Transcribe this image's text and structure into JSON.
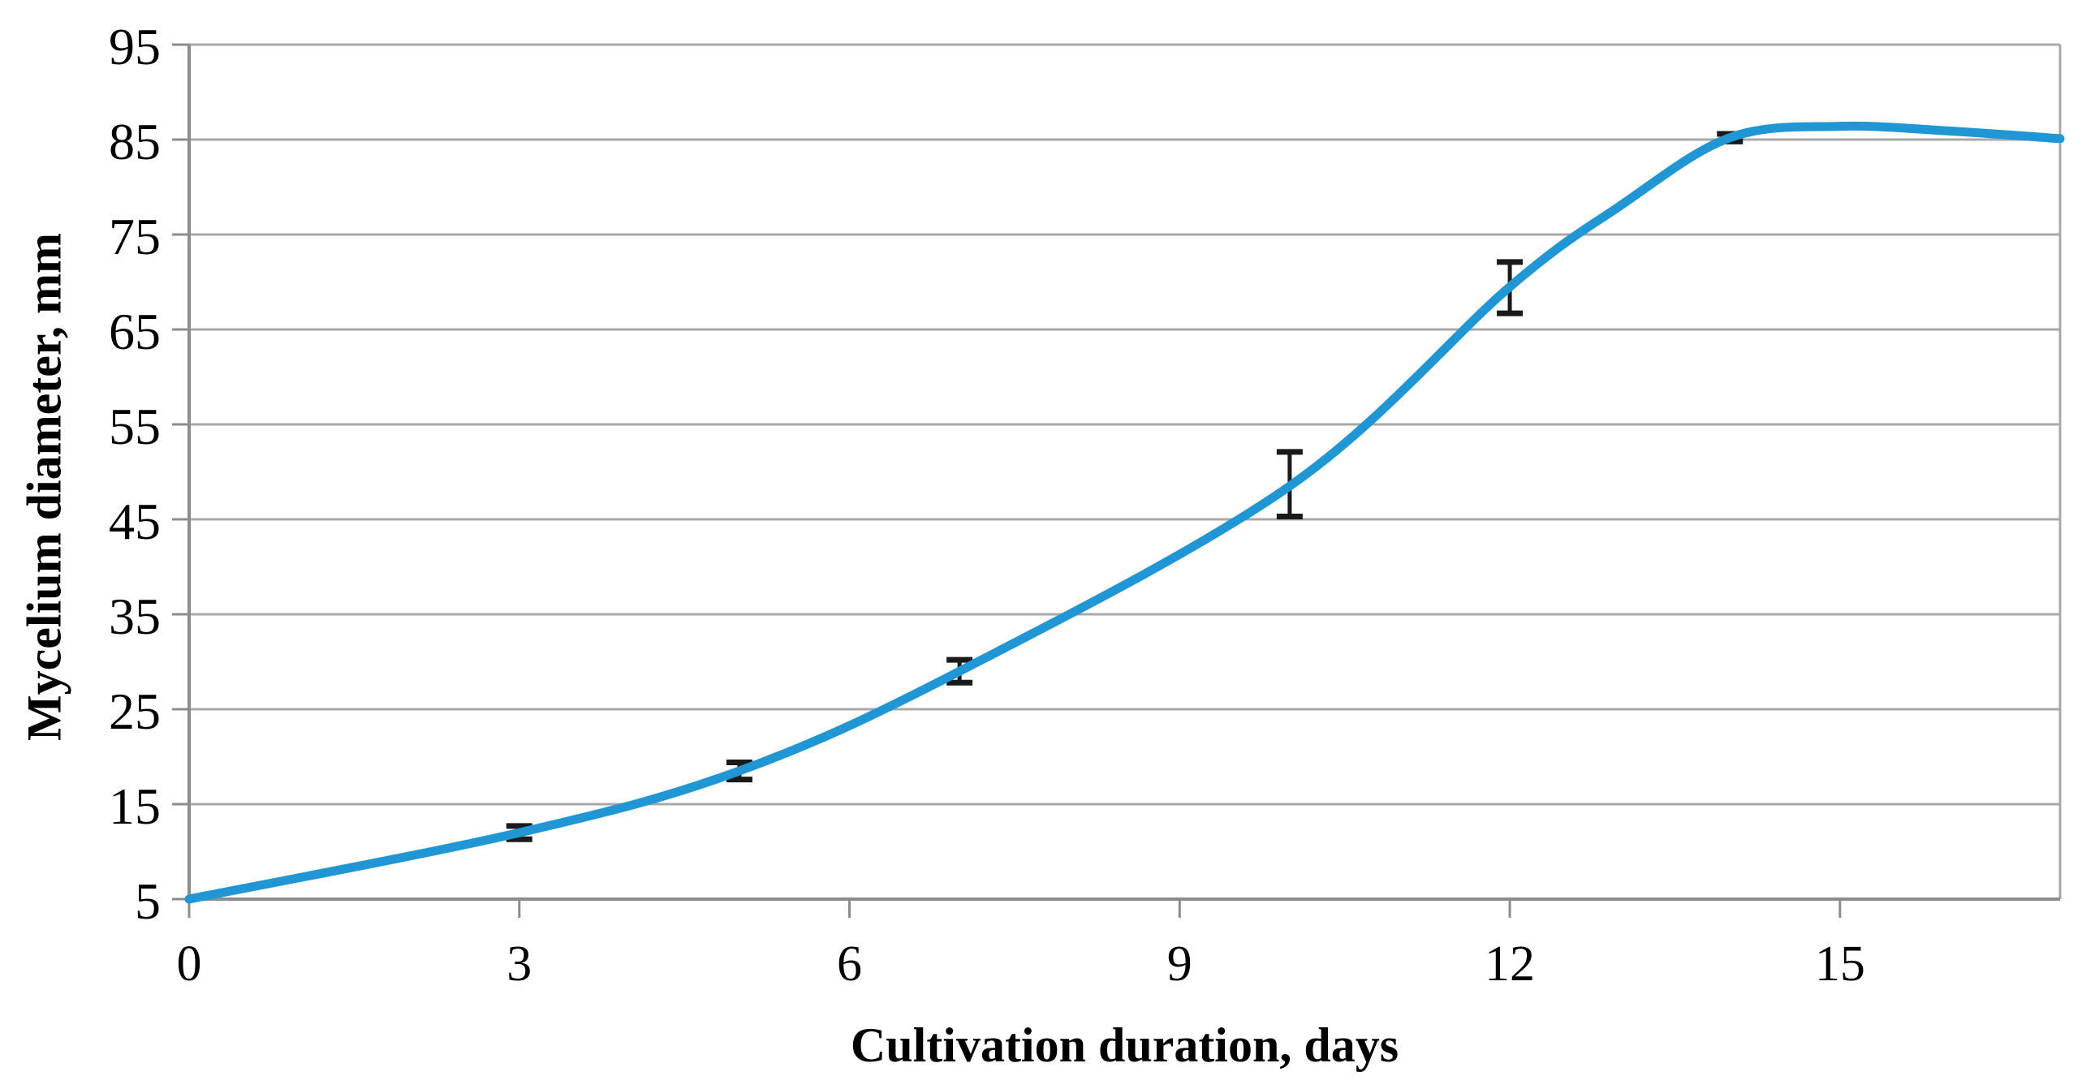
{
  "chart_data": {
    "type": "line",
    "title": "",
    "xlabel": "Cultivation duration, days",
    "ylabel": "Mycelium diameter, mm",
    "xlim": [
      0,
      17
    ],
    "ylim": [
      5,
      95
    ],
    "x_ticks": [
      0,
      3,
      6,
      9,
      12,
      15
    ],
    "y_ticks": [
      5,
      15,
      25,
      35,
      45,
      55,
      65,
      75,
      85,
      95
    ],
    "grid": "horizontal-only",
    "legend": "none",
    "series": [
      {
        "name": "mycelium-diameter",
        "color": "#2196D5",
        "curve_points": [
          [
            0,
            5
          ],
          [
            3,
            12
          ],
          [
            5,
            18.5
          ],
          [
            7,
            29
          ],
          [
            10,
            48.5
          ],
          [
            12,
            69.5
          ],
          [
            13,
            78
          ],
          [
            14,
            85.2
          ],
          [
            15,
            86.4
          ],
          [
            16,
            85.9
          ],
          [
            17,
            85.1
          ]
        ],
        "data_points_with_error": [
          {
            "x": 3,
            "y": 12,
            "err": 0.7
          },
          {
            "x": 5,
            "y": 18.5,
            "err": 0.9
          },
          {
            "x": 7,
            "y": 29,
            "err": 1.2
          },
          {
            "x": 10,
            "y": 48.7,
            "err": 3.4
          },
          {
            "x": 12,
            "y": 69.4,
            "err": 2.7
          },
          {
            "x": 14,
            "y": 85.2,
            "err": 0.4
          }
        ]
      }
    ],
    "colors": {
      "line": "#2196D5",
      "gridline": "#A8A8A8",
      "axis": "#8C8C8C",
      "error_bar": "#1A1A1A",
      "text": "#000000",
      "background": "#FFFFFF"
    }
  }
}
